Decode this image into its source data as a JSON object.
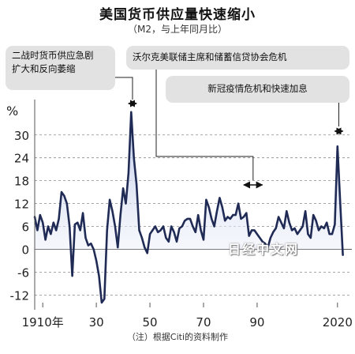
{
  "chart_data": {
    "type": "line",
    "title": "美国货币供应量快速缩小",
    "subtitle": "（M2，与上年同月比）",
    "ylabel": "%",
    "ylim": [
      -14,
      37
    ],
    "xlim": [
      1907,
      2023
    ],
    "yticks": [
      30,
      24,
      18,
      12,
      6,
      0,
      -6,
      -12
    ],
    "xticks": [
      {
        "value": 1910,
        "label": "1910年"
      },
      {
        "value": 1930,
        "label": "30"
      },
      {
        "value": 1950,
        "label": "50"
      },
      {
        "value": 1970,
        "label": "70"
      },
      {
        "value": 1990,
        "label": "90"
      },
      {
        "value": 2020,
        "label": "2020"
      }
    ],
    "grid": "horizontal dashed",
    "colors": {
      "line": "#1f2a55",
      "fill_top": "#b9c6e8",
      "fill_bottom": "#ffffff",
      "annotation_bg": "#e2e2e2"
    },
    "series": [
      {
        "x": [
          1907,
          1908,
          1909,
          1910,
          1911,
          1912,
          1913,
          1914,
          1915,
          1916,
          1917,
          1918,
          1919,
          1920,
          1921,
          1922,
          1923,
          1924,
          1925,
          1926,
          1927,
          1928,
          1929,
          1930,
          1931,
          1932,
          1933,
          1934,
          1935,
          1936,
          1937,
          1938,
          1939,
          1940,
          1941,
          1942,
          1943,
          1944,
          1945,
          1946,
          1947,
          1948,
          1949,
          1950,
          1951,
          1952,
          1953,
          1954,
          1955,
          1956,
          1957,
          1958,
          1959,
          1960,
          1961,
          1962,
          1963,
          1964,
          1965,
          1966,
          1967,
          1968,
          1969,
          1970,
          1971,
          1972,
          1973,
          1974,
          1975,
          1976,
          1977,
          1978,
          1979,
          1980,
          1981,
          1982,
          1983,
          1984,
          1985,
          1986,
          1987,
          1988,
          1989,
          1990,
          1991,
          1992,
          1993,
          1994,
          1995,
          1996,
          1997,
          1998,
          1999,
          2000,
          2001,
          2002,
          2003,
          2004,
          2005,
          2006,
          2007,
          2008,
          2009,
          2010,
          2011,
          2012,
          2013,
          2014,
          2015,
          2016,
          2017,
          2018,
          2019,
          2020,
          2021,
          2022
        ],
        "y": [
          8.5,
          5,
          9,
          7,
          2.5,
          6,
          4,
          7,
          5,
          8,
          15,
          14,
          12,
          6,
          -7,
          6.5,
          7,
          5,
          9.5,
          3,
          1,
          1.5,
          0,
          -3,
          -7,
          -14,
          -13,
          5,
          13,
          10,
          6,
          0.5,
          9,
          16,
          12,
          20,
          36,
          24,
          17,
          5,
          3,
          0.5,
          -1,
          4,
          5,
          6,
          4.5,
          5,
          6,
          3,
          2,
          6,
          4.5,
          2,
          5.5,
          6,
          7.5,
          8,
          8,
          6,
          4.5,
          9,
          5,
          2.5,
          13,
          11,
          8,
          6,
          10,
          13.5,
          11,
          7.5,
          8.5,
          8,
          9,
          9,
          12,
          8,
          8.5,
          9.5,
          3.5,
          5,
          5,
          4,
          3,
          2,
          1.5,
          0.5,
          3,
          4.5,
          5.5,
          8.5,
          7,
          5.5,
          10,
          7,
          5,
          5.5,
          4,
          5,
          6,
          10,
          4,
          3,
          9,
          7.5,
          5,
          6,
          5.5,
          7,
          4,
          4,
          6.5,
          27,
          12.5,
          -1.5
        ]
      }
    ],
    "annotations": [
      {
        "text_lines": [
          "二战时货币供应急剧",
          "扩大和反向萎缩"
        ],
        "range": [
          1942,
          1945
        ]
      },
      {
        "text_lines": [
          "沃尔克美联储主席和储蓄信贷协会危机"
        ],
        "range": [
          1985,
          1992
        ]
      },
      {
        "text_lines": [
          "新冠疫情危机和快速加息"
        ],
        "range": [
          2019,
          2022
        ]
      }
    ]
  },
  "note": "（注）根据Citi的资料制作",
  "watermark": "日经中文网"
}
